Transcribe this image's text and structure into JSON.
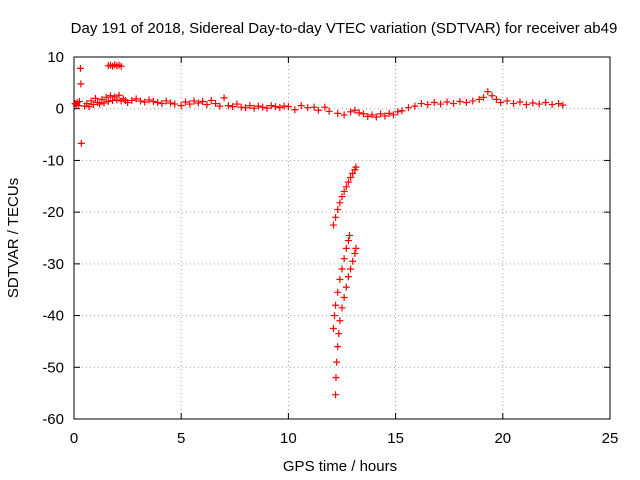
{
  "chart_data": {
    "type": "scatter",
    "title": "Day 191 of 2018, Sidereal Day-to-day VTEC variation (SDTVAR) for receiver ab49",
    "xlabel": "GPS time / hours",
    "ylabel": "SDTVAR / TECUs",
    "xlim": [
      0,
      25
    ],
    "ylim": [
      -60,
      10
    ],
    "xticks": [
      0,
      5,
      10,
      15,
      20,
      25
    ],
    "yticks": [
      -60,
      -50,
      -40,
      -30,
      -20,
      -10,
      0,
      10
    ],
    "grid": true,
    "marker": "+",
    "marker_color": "#ff0000",
    "series": [
      {
        "name": "baseline",
        "points": [
          [
            0.05,
            1.0
          ],
          [
            0.1,
            0.8
          ],
          [
            0.15,
            1.2
          ],
          [
            0.2,
            0.6
          ],
          [
            0.25,
            1.4
          ],
          [
            0.3,
            7.8
          ],
          [
            0.32,
            4.8
          ],
          [
            0.34,
            -6.7
          ],
          [
            0.5,
            0.5
          ],
          [
            0.6,
            1.0
          ],
          [
            0.7,
            0.4
          ],
          [
            0.8,
            1.5
          ],
          [
            0.9,
            0.8
          ],
          [
            1.0,
            2.0
          ],
          [
            1.1,
            1.2
          ],
          [
            1.2,
            0.9
          ],
          [
            1.3,
            1.8
          ],
          [
            1.4,
            1.1
          ],
          [
            1.5,
            2.2
          ],
          [
            1.6,
            1.4
          ],
          [
            1.7,
            2.5
          ],
          [
            1.8,
            1.6
          ],
          [
            1.9,
            2.3
          ],
          [
            2.0,
            1.7
          ],
          [
            2.1,
            2.6
          ],
          [
            2.2,
            1.5
          ],
          [
            2.3,
            1.9
          ],
          [
            2.4,
            1.6
          ],
          [
            1.6,
            8.3
          ],
          [
            1.7,
            8.4
          ],
          [
            1.8,
            8.2
          ],
          [
            1.9,
            8.5
          ],
          [
            2.0,
            8.3
          ],
          [
            2.1,
            8.4
          ],
          [
            2.2,
            8.2
          ],
          [
            2.5,
            1.2
          ],
          [
            2.7,
            1.6
          ],
          [
            2.9,
            1.9
          ],
          [
            3.1,
            1.5
          ],
          [
            3.3,
            1.3
          ],
          [
            3.5,
            1.7
          ],
          [
            3.7,
            1.4
          ],
          [
            3.9,
            1.2
          ],
          [
            4.1,
            1.0
          ],
          [
            4.3,
            1.5
          ],
          [
            4.5,
            1.1
          ],
          [
            4.7,
            0.9
          ],
          [
            5.0,
            0.6
          ],
          [
            5.2,
            1.3
          ],
          [
            5.4,
            0.9
          ],
          [
            5.6,
            1.5
          ],
          [
            5.8,
            1.1
          ],
          [
            6.0,
            1.4
          ],
          [
            6.2,
            0.8
          ],
          [
            6.4,
            1.6
          ],
          [
            6.6,
            1.0
          ],
          [
            6.8,
            0.5
          ],
          [
            7.0,
            2.1
          ],
          [
            7.2,
            0.6
          ],
          [
            7.4,
            0.4
          ],
          [
            7.6,
            0.9
          ],
          [
            7.8,
            0.3
          ],
          [
            8.0,
            0.2
          ],
          [
            8.2,
            0.6
          ],
          [
            8.4,
            0.1
          ],
          [
            8.6,
            0.5
          ],
          [
            8.8,
            0.3
          ],
          [
            9.0,
            0.1
          ],
          [
            9.2,
            0.6
          ],
          [
            9.4,
            0.4
          ],
          [
            9.6,
            0.2
          ],
          [
            9.8,
            0.5
          ],
          [
            10.0,
            0.4
          ],
          [
            10.3,
            -0.2
          ],
          [
            10.6,
            0.6
          ],
          [
            10.9,
            0.2
          ],
          [
            11.2,
            0.3
          ],
          [
            11.4,
            -0.3
          ],
          [
            11.7,
            0.3
          ],
          [
            11.9,
            -0.5
          ],
          [
            12.3,
            -0.9
          ],
          [
            12.6,
            -1.2
          ],
          [
            12.9,
            -0.6
          ],
          [
            13.1,
            -0.3
          ],
          [
            13.3,
            -0.8
          ],
          [
            13.5,
            -1.0
          ],
          [
            13.7,
            -1.5
          ],
          [
            13.9,
            -1.2
          ],
          [
            14.1,
            -1.6
          ],
          [
            14.3,
            -1.0
          ],
          [
            14.5,
            -1.4
          ],
          [
            14.7,
            -0.9
          ],
          [
            14.9,
            -1.2
          ],
          [
            15.1,
            -0.6
          ],
          [
            15.3,
            -0.4
          ],
          [
            15.6,
            0.2
          ],
          [
            15.9,
            0.5
          ],
          [
            16.2,
            1.0
          ],
          [
            16.5,
            0.8
          ],
          [
            16.8,
            1.2
          ],
          [
            17.1,
            0.9
          ],
          [
            17.4,
            1.3
          ],
          [
            17.7,
            1.0
          ],
          [
            18.0,
            1.4
          ],
          [
            18.3,
            1.2
          ],
          [
            18.6,
            1.5
          ],
          [
            18.9,
            1.8
          ],
          [
            19.1,
            2.2
          ],
          [
            19.3,
            3.3
          ],
          [
            19.5,
            2.5
          ],
          [
            19.7,
            1.8
          ],
          [
            19.9,
            1.2
          ],
          [
            20.2,
            1.5
          ],
          [
            20.5,
            1.0
          ],
          [
            20.8,
            1.3
          ],
          [
            21.1,
            0.8
          ],
          [
            21.4,
            1.1
          ],
          [
            21.7,
            0.9
          ],
          [
            22.0,
            1.2
          ],
          [
            22.3,
            0.8
          ],
          [
            22.6,
            1.0
          ],
          [
            22.8,
            0.7
          ]
        ]
      },
      {
        "name": "upper-arc",
        "points": [
          [
            12.1,
            -22.5
          ],
          [
            12.2,
            -21.0
          ],
          [
            12.3,
            -19.5
          ],
          [
            12.4,
            -18.2
          ],
          [
            12.5,
            -17.0
          ],
          [
            12.6,
            -16.0
          ],
          [
            12.7,
            -15.1
          ],
          [
            12.8,
            -14.2
          ],
          [
            12.9,
            -13.3
          ],
          [
            13.0,
            -12.5
          ],
          [
            13.1,
            -11.8
          ],
          [
            13.15,
            -11.3
          ]
        ]
      },
      {
        "name": "lower-arc",
        "points": [
          [
            12.2,
            -55.3
          ],
          [
            12.22,
            -52.0
          ],
          [
            12.25,
            -49.0
          ],
          [
            12.3,
            -46.0
          ],
          [
            12.35,
            -43.5
          ],
          [
            12.4,
            -41.0
          ],
          [
            12.5,
            -38.5
          ],
          [
            12.6,
            -36.5
          ],
          [
            12.7,
            -34.5
          ],
          [
            12.8,
            -32.5
          ],
          [
            12.9,
            -31.0
          ],
          [
            13.0,
            -29.5
          ],
          [
            13.1,
            -28.0
          ],
          [
            13.15,
            -27.0
          ]
        ]
      },
      {
        "name": "lower-arc-inner",
        "points": [
          [
            12.1,
            -42.5
          ],
          [
            12.15,
            -40.0
          ],
          [
            12.2,
            -38.0
          ],
          [
            12.3,
            -35.5
          ],
          [
            12.4,
            -33.0
          ],
          [
            12.5,
            -31.0
          ],
          [
            12.6,
            -29.0
          ],
          [
            12.7,
            -27.0
          ],
          [
            12.8,
            -25.5
          ],
          [
            12.85,
            -24.5
          ]
        ]
      }
    ]
  }
}
